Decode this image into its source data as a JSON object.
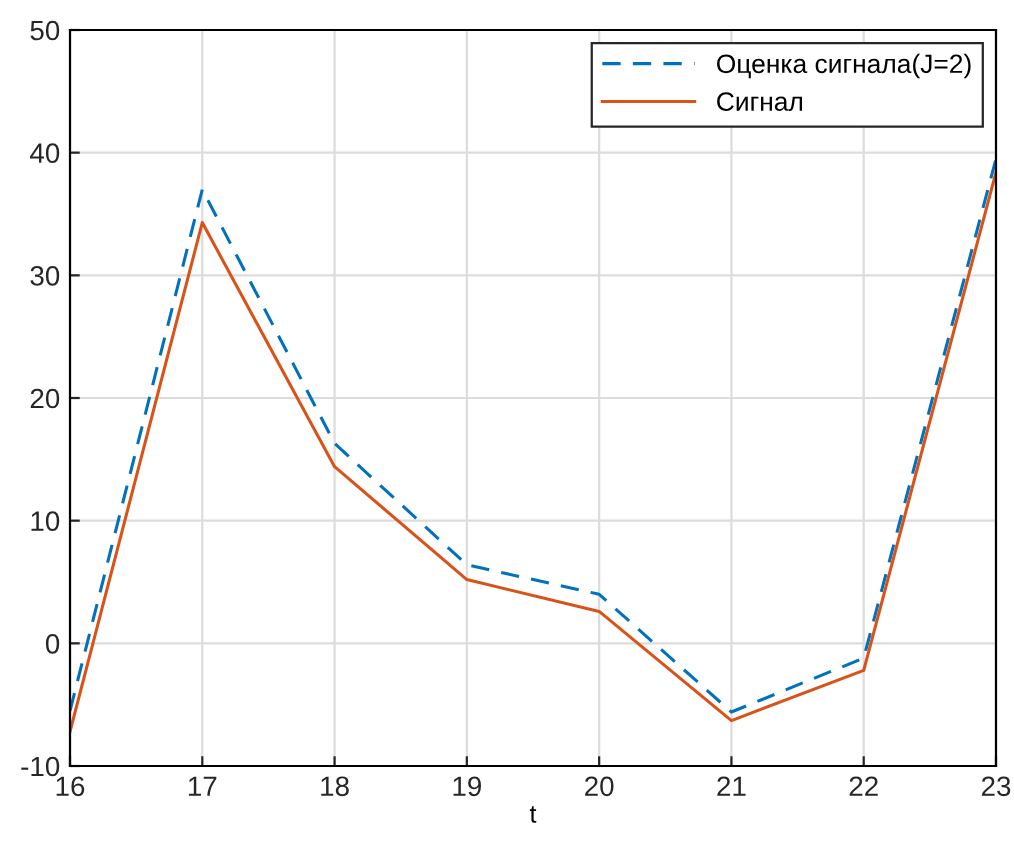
{
  "chart_data": {
    "type": "line",
    "xlabel": "t",
    "x": [
      16,
      17,
      18,
      19,
      20,
      21,
      22,
      23
    ],
    "series": [
      {
        "name": "Оценка сигнала(J=2)",
        "color": "#0072bd",
        "line_style": "dashed",
        "values": [
          -5.5,
          37.0,
          16.3,
          6.4,
          4.0,
          -5.6,
          -1.2,
          39.5
        ]
      },
      {
        "name": "Сигнал",
        "color": "#d95319",
        "line_style": "solid",
        "values": [
          -7.2,
          34.3,
          14.4,
          5.2,
          2.6,
          -6.3,
          -2.2,
          38.4
        ]
      }
    ],
    "xlim": [
      16,
      23
    ],
    "xticks": [
      16,
      17,
      18,
      19,
      20,
      21,
      22,
      23
    ],
    "ylim": [
      -10,
      50
    ],
    "yticks": [
      -10,
      0,
      10,
      20,
      30,
      40,
      50
    ],
    "grid": true,
    "legend": "top right"
  }
}
